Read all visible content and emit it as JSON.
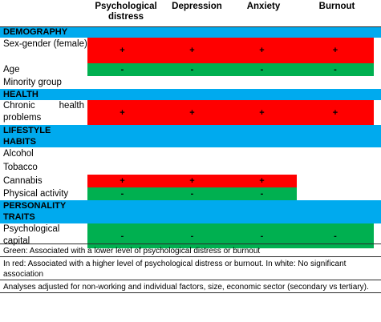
{
  "header": {
    "col1": "Psychological distress",
    "col2": "Depression",
    "col3": "Anxiety",
    "col4": "Burnout"
  },
  "sections": {
    "demography": "DEMOGRAPHY",
    "health": "HEALTH",
    "lifestyle": "LIFESTYLE HABITS",
    "personality": "PERSONALITY TRAITS"
  },
  "rows": {
    "sex_gender": {
      "label": "Sex-gender (female)",
      "c1": "+",
      "c2": "+",
      "c3": "+",
      "c4": "+"
    },
    "age": {
      "label": "Age",
      "c1": "-",
      "c2": "-",
      "c3": "-",
      "c4": "-"
    },
    "minority": {
      "label": "Minority group"
    },
    "chronic": {
      "label_a": "Chronic",
      "label_b": "health",
      "label_c": "problems",
      "c1": "+",
      "c2": "+",
      "c3": "+",
      "c4": "+"
    },
    "alcohol": {
      "label": "Alcohol"
    },
    "tobacco": {
      "label": "Tobacco"
    },
    "cannabis": {
      "label": "Cannabis",
      "c1": "+",
      "c2": "+",
      "c3": "+"
    },
    "physical": {
      "label": "Physical activity",
      "c1": "-",
      "c2": "-",
      "c3": "-"
    },
    "psych_capital": {
      "label": "Psychological capital",
      "c1": "-",
      "c2": "-",
      "c3": "-",
      "c4": "-"
    }
  },
  "notes": {
    "n1": "Green: Associated with a lower level of psychological distress or burnout",
    "n2": "In red: Associated with a higher level of psychological distress or burnout.  In white: No significant association",
    "n3": "Analyses adjusted for non-working and individual factors, size, economic sector (secondary vs tertiary)."
  },
  "colors": {
    "section": "#00aaee",
    "positive": "#ff0000",
    "negative": "#00b050"
  }
}
